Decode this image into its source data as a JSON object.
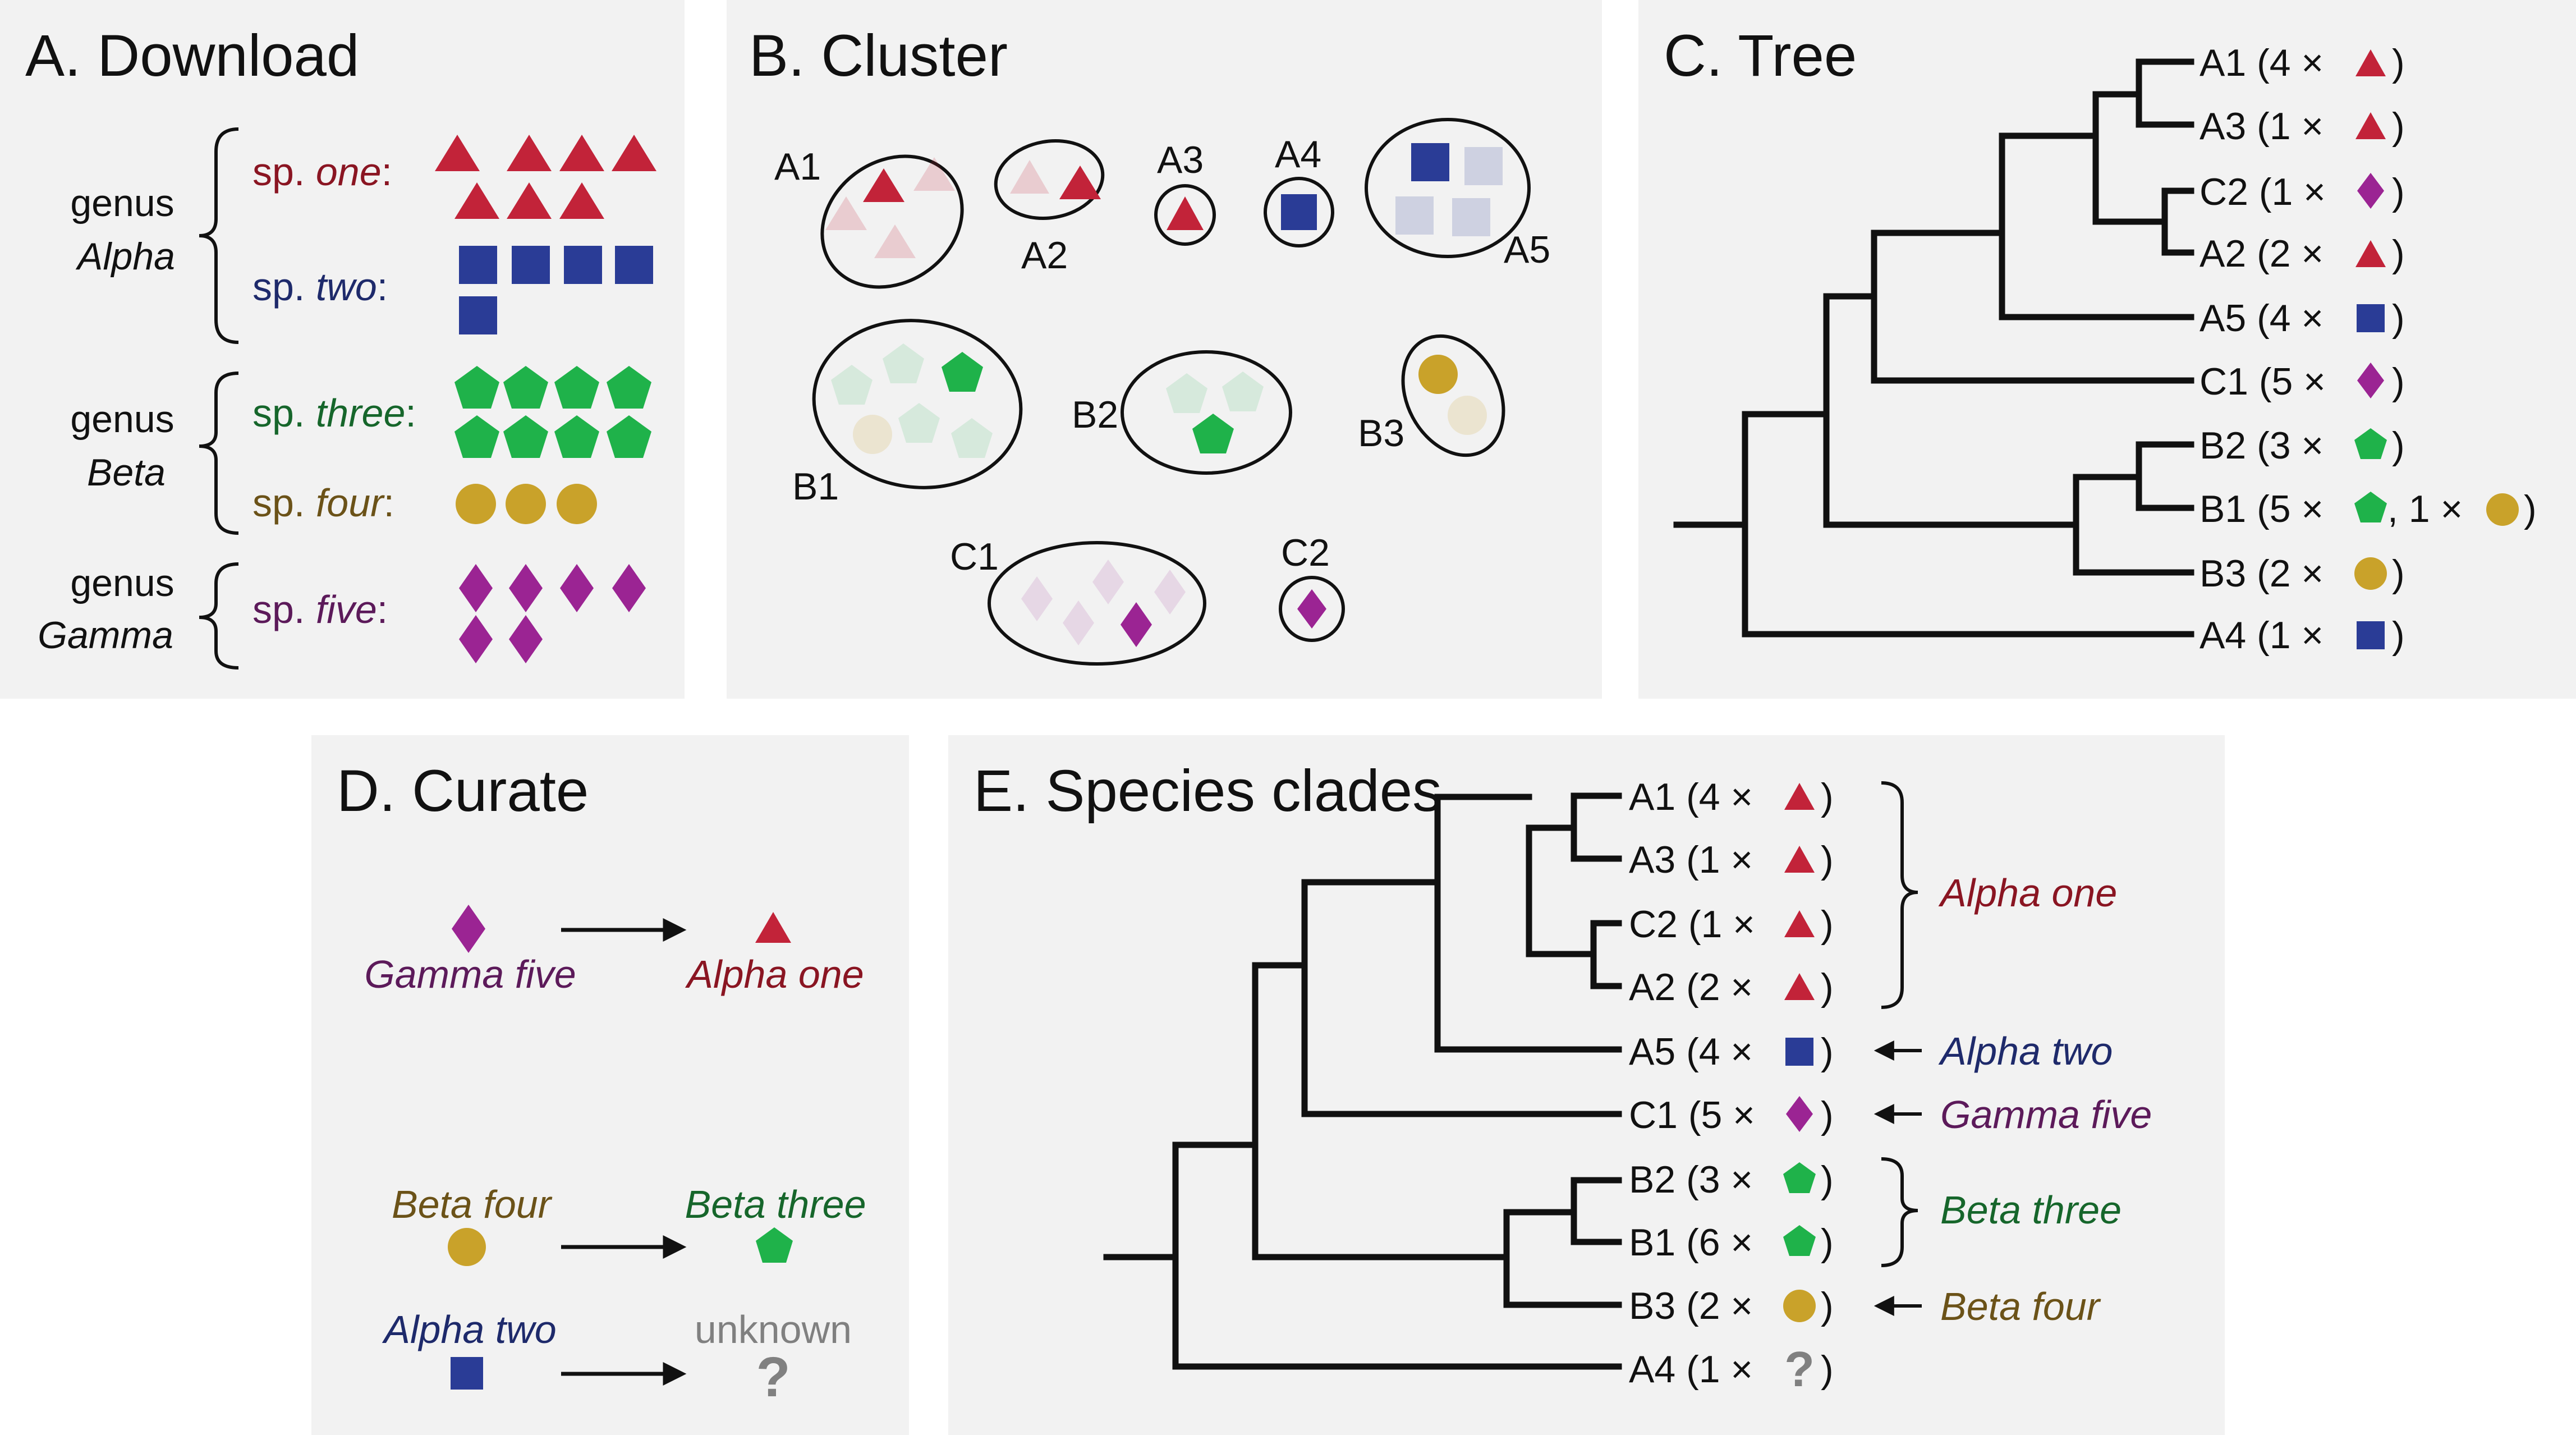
{
  "colors": {
    "panel_bg": "#f2f2f2",
    "alpha_one": "#c22339",
    "alpha_two": "#2a3c96",
    "beta_three": "#1fb24a",
    "beta_four": "#c9a22a",
    "gamma_five": "#9b2493",
    "text_alpha_one": "#8a1522",
    "text_alpha_two": "#1e2a6b",
    "text_beta_three": "#16662b",
    "text_beta_four": "#6b5218",
    "text_gamma_five": "#5c1a5a",
    "unknown": "#808080"
  },
  "panel_a": {
    "title": "A. Download",
    "genera": [
      {
        "line1": "genus",
        "line2": "Alpha",
        "species": [
          {
            "prefix": "sp. ",
            "name": "one",
            "suffix": ":",
            "shape": "triangle",
            "count": 7
          },
          {
            "prefix": "sp. ",
            "name": "two",
            "suffix": ":",
            "shape": "square",
            "count": 5
          }
        ]
      },
      {
        "line1": "genus",
        "line2": "Beta",
        "species": [
          {
            "prefix": "sp. ",
            "name": "three",
            "suffix": ":",
            "shape": "pentagon",
            "count": 8
          },
          {
            "prefix": "sp. ",
            "name": "four",
            "suffix": ":",
            "shape": "circle",
            "count": 3
          }
        ]
      },
      {
        "line1": "genus",
        "line2": "Gamma",
        "species": [
          {
            "prefix": "sp. ",
            "name": "five",
            "suffix": ":",
            "shape": "diamond",
            "count": 6
          }
        ]
      }
    ]
  },
  "panel_b": {
    "title": "B. Cluster",
    "clusters": [
      "A1",
      "A2",
      "A3",
      "A4",
      "A5",
      "B1",
      "B2",
      "B3",
      "C1",
      "C2"
    ]
  },
  "panel_c": {
    "title": "C. Tree",
    "leaves": [
      {
        "id": "A1",
        "text": "A1 (4 ×",
        "shape": "triangle",
        "close": ")"
      },
      {
        "id": "A3",
        "text": "A3 (1 ×",
        "shape": "triangle",
        "close": ")"
      },
      {
        "id": "C2",
        "text": "C2 (1 ×",
        "shape": "diamond",
        "close": ")"
      },
      {
        "id": "A2",
        "text": "A2 (2 ×",
        "shape": "triangle",
        "close": ")"
      },
      {
        "id": "A5",
        "text": "A5 (4 ×",
        "shape": "square",
        "close": ")"
      },
      {
        "id": "C1",
        "text": "C1 (5 ×",
        "shape": "diamond",
        "close": ")"
      },
      {
        "id": "B2",
        "text": "B2 (3 ×",
        "shape": "pentagon",
        "close": ")"
      },
      {
        "id": "B1",
        "text": "B1 (5 ×",
        "shape": "pentagon",
        "mid": ", 1 ×",
        "shape2": "circle",
        "close": ")"
      },
      {
        "id": "B3",
        "text": "B3 (2 ×",
        "shape": "circle",
        "close": ")"
      },
      {
        "id": "A4",
        "text": "A4 (1 ×",
        "shape": "square",
        "close": ")"
      }
    ]
  },
  "panel_d": {
    "title": "D. Curate",
    "mappings": [
      {
        "from": "Gamma five",
        "to": "Alpha one"
      },
      {
        "from": "Beta four",
        "to": "Beta three"
      },
      {
        "from": "Alpha two",
        "to": "unknown",
        "to_symbol": "?"
      }
    ]
  },
  "panel_e": {
    "title": "E. Species clades",
    "leaves": [
      {
        "id": "A1",
        "text": "A1 (4 ×",
        "shape": "triangle",
        "close": ")"
      },
      {
        "id": "A3",
        "text": "A3 (1 ×",
        "shape": "triangle",
        "close": ")"
      },
      {
        "id": "C2",
        "text": "C2 (1 ×",
        "shape": "triangle",
        "close": ")"
      },
      {
        "id": "A2",
        "text": "A2 (2 ×",
        "shape": "triangle",
        "close": ")"
      },
      {
        "id": "A5",
        "text": "A5 (4 ×",
        "shape": "square",
        "close": ")"
      },
      {
        "id": "C1",
        "text": "C1 (5 ×",
        "shape": "diamond",
        "close": ")"
      },
      {
        "id": "B2",
        "text": "B2 (3 ×",
        "shape": "pentagon",
        "close": ")"
      },
      {
        "id": "B1",
        "text": "B1 (6 ×",
        "shape": "pentagon",
        "close": ")"
      },
      {
        "id": "B3",
        "text": "B3 (2 ×",
        "shape": "circle",
        "close": ")"
      },
      {
        "id": "A4",
        "text": "A4 (1 ×",
        "shape": "unknown",
        "symbol": "?",
        "close": ")"
      }
    ],
    "clades": [
      "Alpha one",
      "Alpha two",
      "Gamma five",
      "Beta three",
      "Beta four"
    ]
  }
}
